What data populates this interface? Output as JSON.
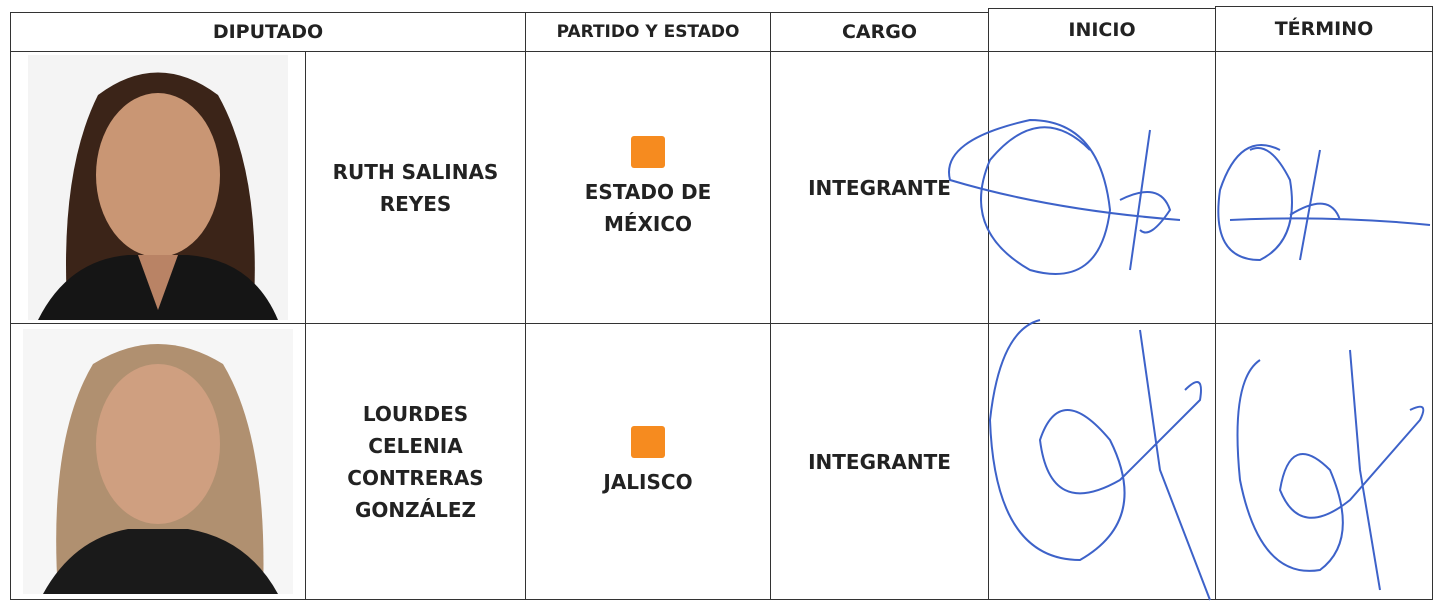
{
  "table": {
    "header": [
      "DIPUTADO",
      "PARTIDO Y ESTADO",
      "CARGO",
      "INICIO",
      "TÉRMINO"
    ],
    "rows": [
      {
        "name": "RUTH SALINAS REYES",
        "state": "ESTADO DE MÉXICO",
        "role": "INTEGRANTE"
      },
      {
        "name": "LOURDES CELENIA CONTRERAS GONZÁLEZ",
        "state": "JALISCO",
        "role": "INTEGRANTE"
      }
    ]
  }
}
